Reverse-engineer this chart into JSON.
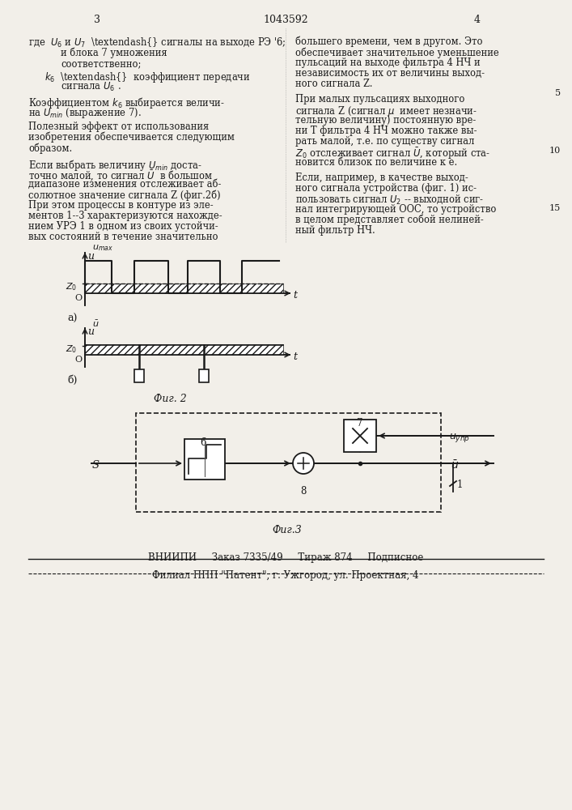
{
  "page_number_left": "3",
  "patent_number": "1043592",
  "page_number_right": "4",
  "bg_color": "#f2efe9",
  "text_color": "#1a1a1a",
  "fig2_caption": "Фиг. 2",
  "fig3_caption": "Фиг.3",
  "footer_line1": "ВНИИПИ     Заказ 7335/49     Тираж 874     Подписное",
  "footer_line2": "Филиал ППП \"Патент\", г. Ужгород, ул. Проектная, 4"
}
